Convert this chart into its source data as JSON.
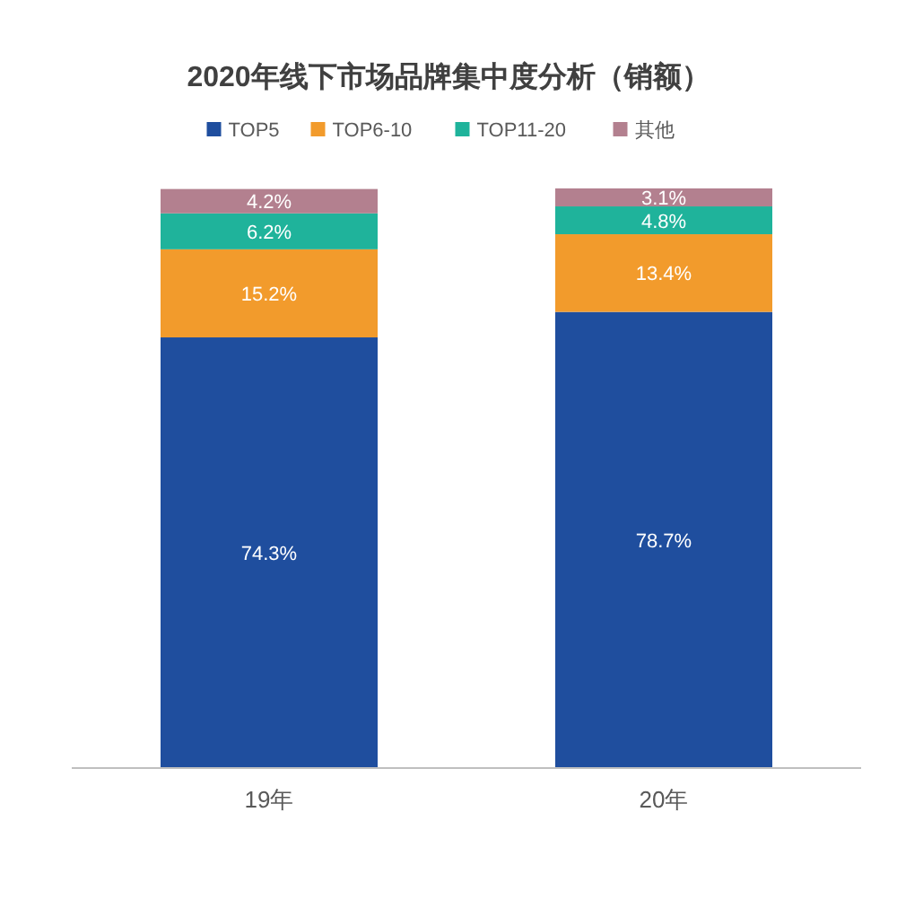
{
  "chart_data": {
    "type": "bar",
    "title": "2020年线下市场品牌集中度分析（销额）",
    "stacked": true,
    "legend": "top",
    "categories": [
      "19年",
      "20年"
    ],
    "series": [
      {
        "name": "TOP5",
        "color": "#1f4e9e",
        "values": [
          74.3,
          78.7
        ],
        "value_labels": [
          "74.3%",
          "78.7%"
        ]
      },
      {
        "name": "TOP6-10",
        "color": "#f29b2c",
        "values": [
          15.2,
          13.4
        ],
        "value_labels": [
          "15.2%",
          "13.4%"
        ]
      },
      {
        "name": "TOP11-20",
        "color": "#1fb39b",
        "values": [
          6.2,
          4.8
        ],
        "value_labels": [
          "6.2%",
          "4.8%"
        ]
      },
      {
        "name": "其他",
        "color": "#b3808f",
        "values": [
          4.2,
          3.1
        ],
        "value_labels": [
          "4.2%",
          "3.1%"
        ]
      }
    ]
  }
}
